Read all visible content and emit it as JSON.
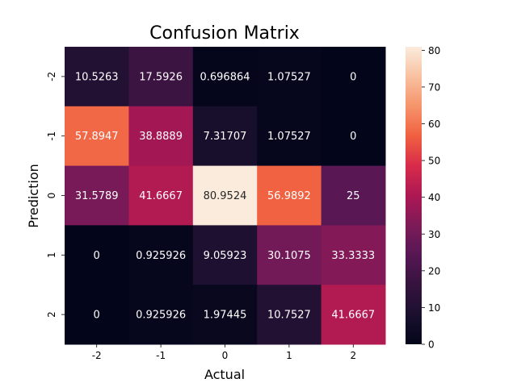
{
  "chart_data": {
    "type": "heatmap",
    "title": "Confusion Matrix",
    "xlabel": "Actual",
    "ylabel": "Prediction",
    "x_categories": [
      "-2",
      "-1",
      "0",
      "1",
      "2"
    ],
    "y_categories": [
      "-2",
      "-1",
      "0",
      "1",
      "2"
    ],
    "values": [
      [
        10.5263,
        17.5926,
        0.696864,
        1.07527,
        0
      ],
      [
        57.8947,
        38.8889,
        7.31707,
        1.07527,
        0
      ],
      [
        31.5789,
        41.6667,
        80.9524,
        56.9892,
        25
      ],
      [
        0,
        0.925926,
        9.05923,
        30.1075,
        33.3333
      ],
      [
        0,
        0.925926,
        1.97445,
        10.7527,
        41.6667
      ]
    ],
    "colorbar": {
      "min": 0,
      "max": 80.9524,
      "ticks": [
        "0",
        "10",
        "20",
        "30",
        "40",
        "50",
        "60",
        "70",
        "80"
      ],
      "colormap": "rocket"
    }
  }
}
